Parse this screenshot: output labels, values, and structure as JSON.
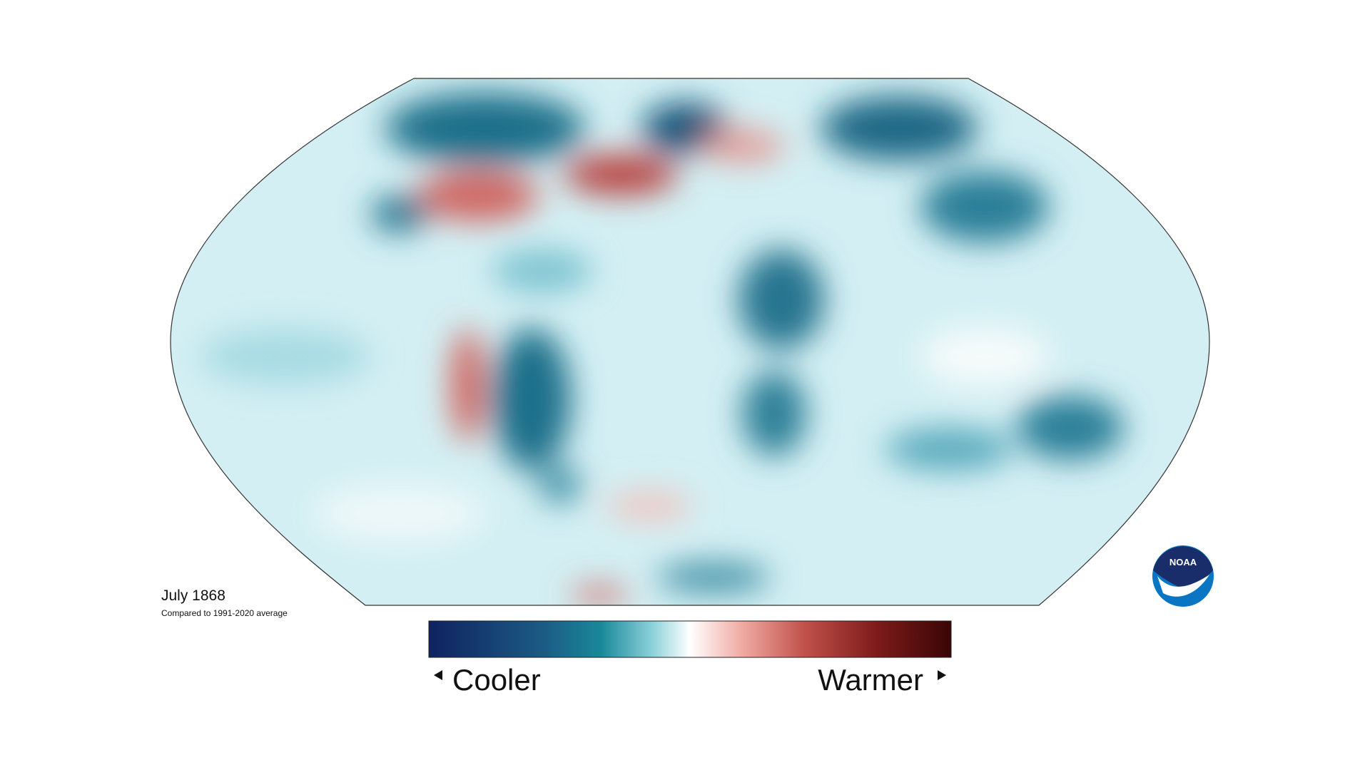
{
  "map": {
    "title": "July 1868",
    "subtitle": "Compared to 1991-2020 average"
  },
  "legend": {
    "low_label": "Cooler",
    "high_label": "Warmer"
  },
  "logo": {
    "text": "NOAA"
  }
}
